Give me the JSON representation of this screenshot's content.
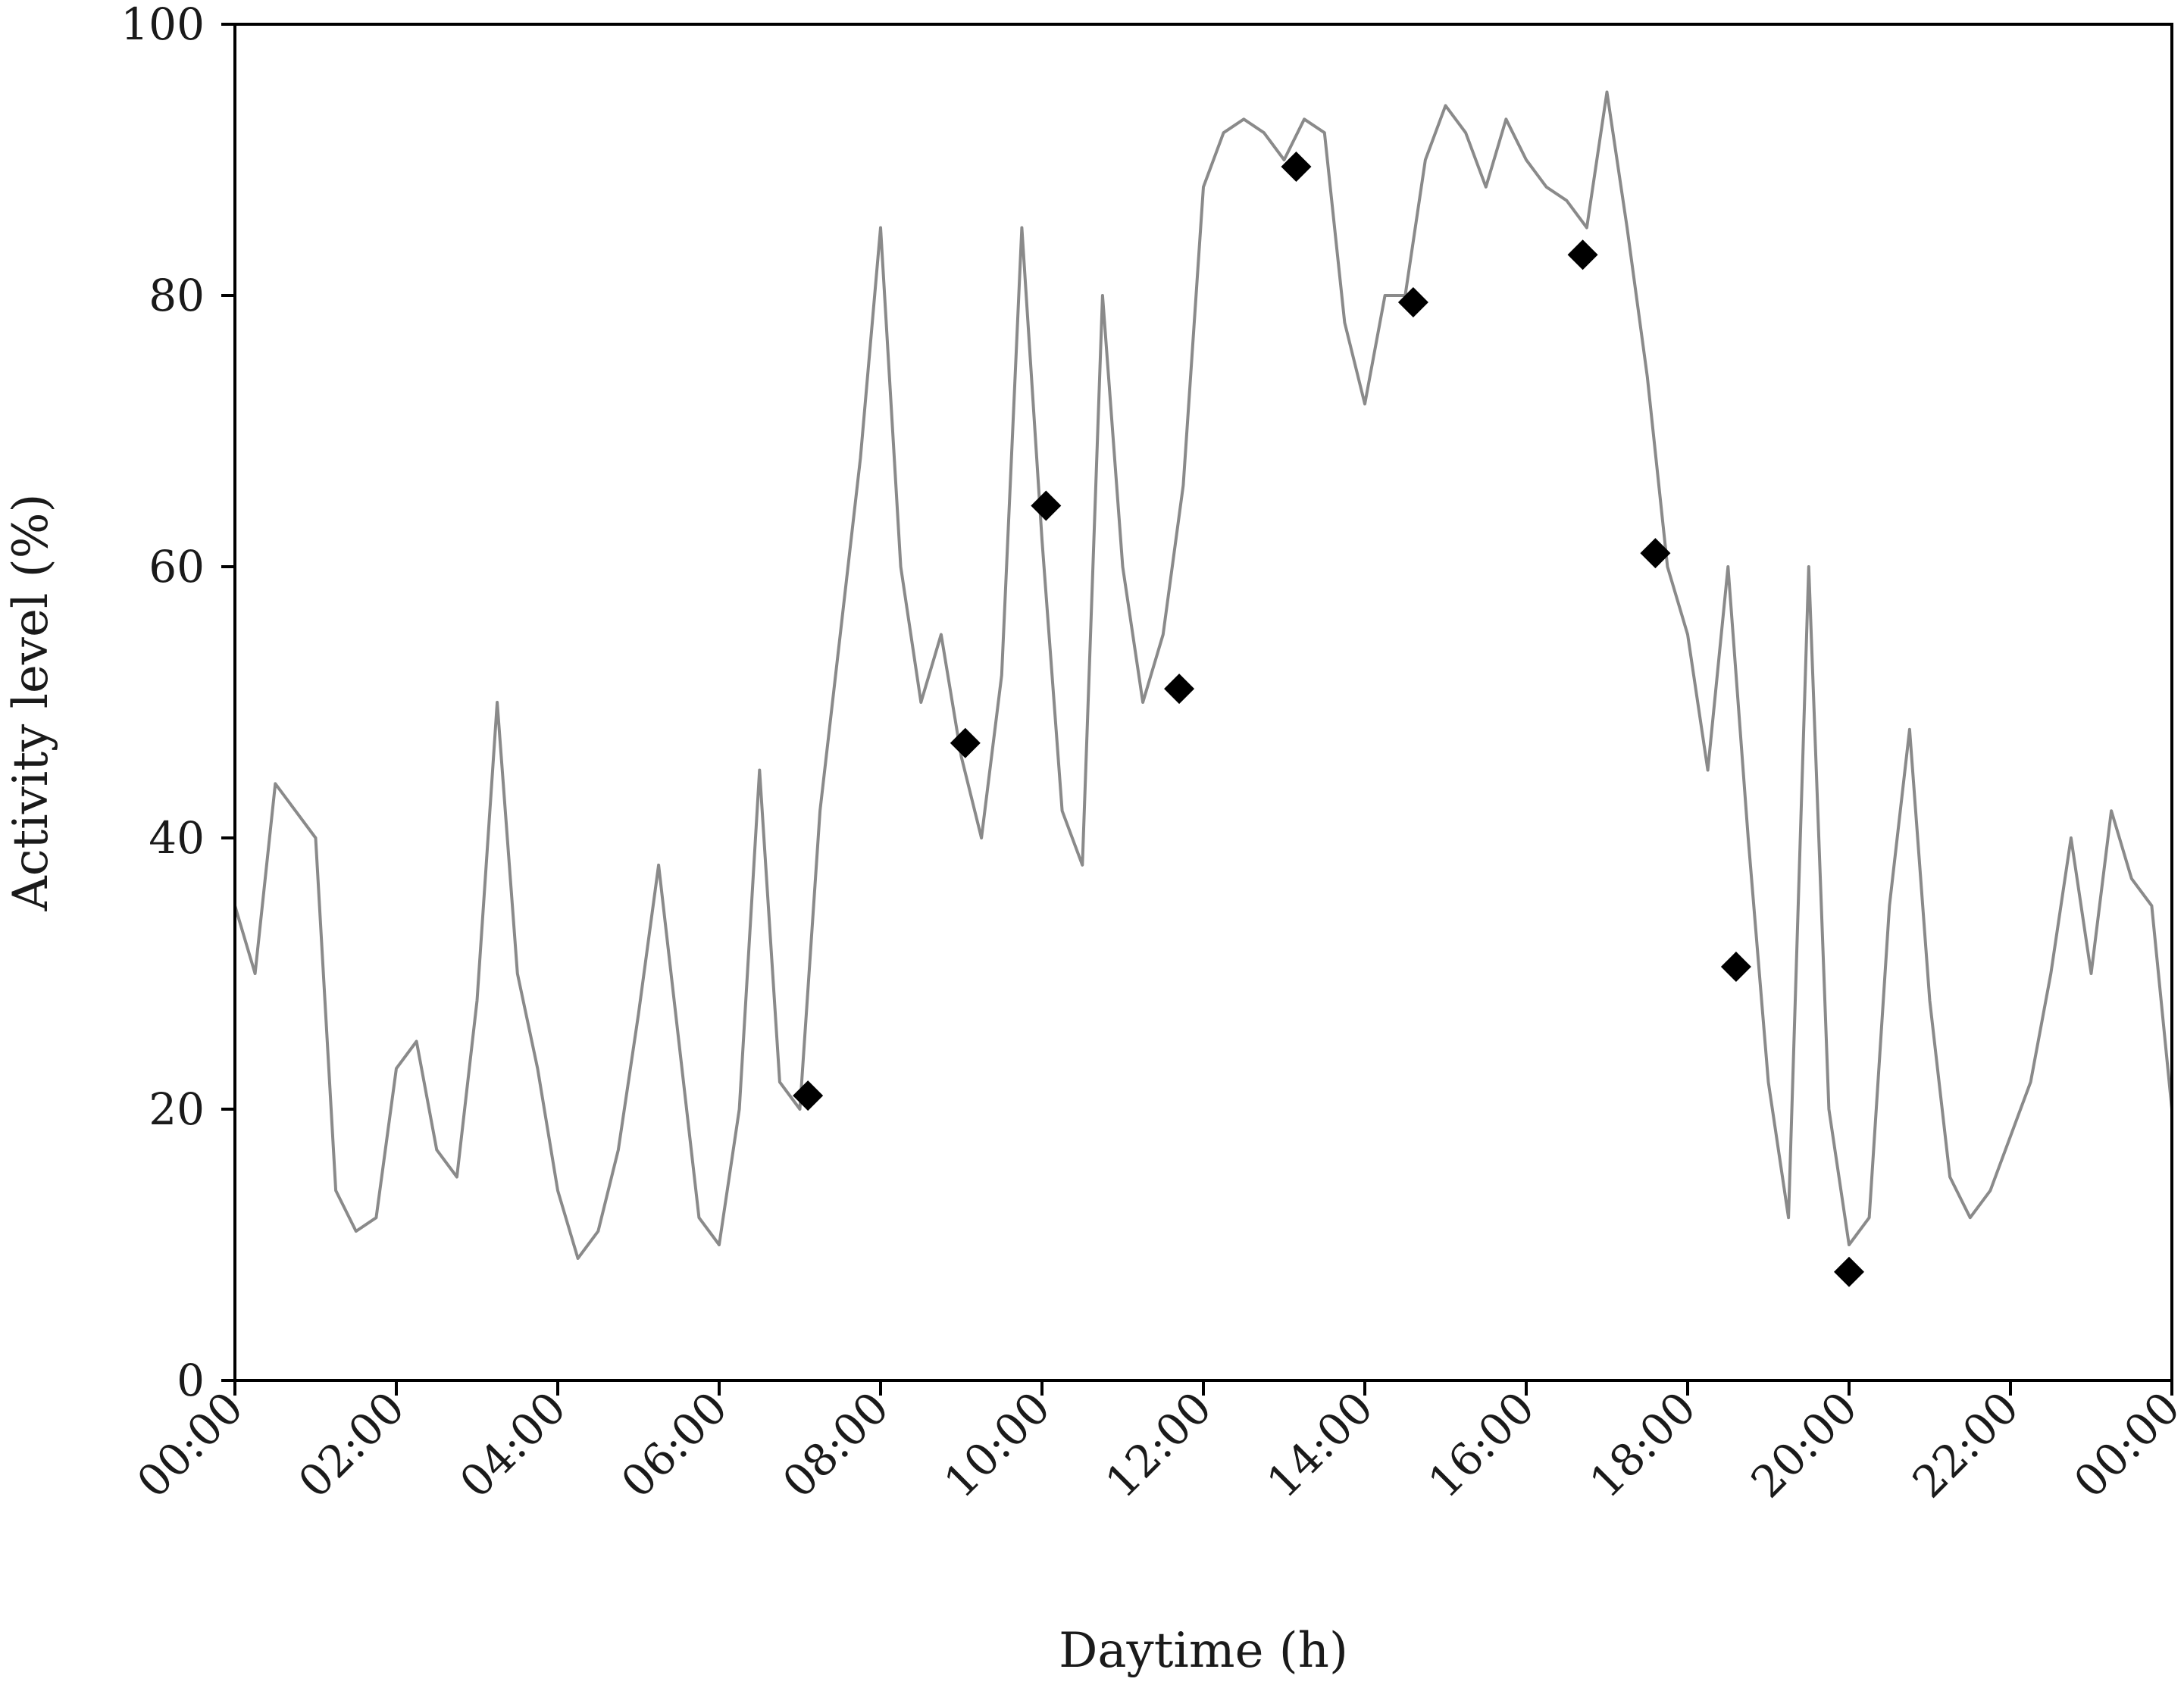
{
  "chart_data": {
    "type": "line",
    "title": "",
    "xlabel": "Daytime (h)",
    "ylabel": "Activity level (%)",
    "xlim": [
      0,
      24
    ],
    "ylim": [
      0,
      100
    ],
    "grid": false,
    "legend": "none",
    "x_ticks": [
      {
        "value": 0,
        "label": "00:00"
      },
      {
        "value": 2,
        "label": "02:00"
      },
      {
        "value": 4,
        "label": "04:00"
      },
      {
        "value": 6,
        "label": "06:00"
      },
      {
        "value": 8,
        "label": "08:00"
      },
      {
        "value": 10,
        "label": "10:00"
      },
      {
        "value": 12,
        "label": "12:00"
      },
      {
        "value": 14,
        "label": "14:00"
      },
      {
        "value": 16,
        "label": "16:00"
      },
      {
        "value": 18,
        "label": "18:00"
      },
      {
        "value": 20,
        "label": "20:00"
      },
      {
        "value": 22,
        "label": "22:00"
      },
      {
        "value": 24,
        "label": "00:00"
      }
    ],
    "y_ticks": [
      {
        "value": 0,
        "label": "0"
      },
      {
        "value": 20,
        "label": "20"
      },
      {
        "value": 40,
        "label": "40"
      },
      {
        "value": 60,
        "label": "60"
      },
      {
        "value": 80,
        "label": "80"
      },
      {
        "value": 100,
        "label": "100"
      }
    ],
    "series": [
      {
        "kind": "line",
        "color": "#8a8a8a",
        "x": [
          0.0,
          0.25,
          0.5,
          0.75,
          1.0,
          1.25,
          1.5,
          1.75,
          2.0,
          2.25,
          2.5,
          2.75,
          3.0,
          3.25,
          3.5,
          3.75,
          4.0,
          4.25,
          4.5,
          4.75,
          5.0,
          5.25,
          5.5,
          5.75,
          6.0,
          6.25,
          6.5,
          6.75,
          7.0,
          7.25,
          7.5,
          7.75,
          8.0,
          8.25,
          8.5,
          8.75,
          9.0,
          9.25,
          9.5,
          9.75,
          10.0,
          10.25,
          10.5,
          10.75,
          11.0,
          11.25,
          11.5,
          11.75,
          12.0,
          12.25,
          12.5,
          12.75,
          13.0,
          13.25,
          13.5,
          13.75,
          14.0,
          14.25,
          14.5,
          14.75,
          15.0,
          15.25,
          15.5,
          15.75,
          16.0,
          16.25,
          16.5,
          16.75,
          17.0,
          17.25,
          17.5,
          17.75,
          18.0,
          18.25,
          18.5,
          18.75,
          19.0,
          19.25,
          19.5,
          19.75,
          20.0,
          20.25,
          20.5,
          20.75,
          21.0,
          21.25,
          21.5,
          21.75,
          22.0,
          22.25,
          22.5,
          22.75,
          23.0,
          23.25,
          23.5,
          23.75,
          24.0
        ],
        "values": [
          35,
          30,
          44,
          42,
          40,
          14,
          11,
          12,
          23,
          25,
          17,
          15,
          28,
          50,
          30,
          23,
          14,
          9,
          11,
          17,
          27,
          38,
          25,
          12,
          10,
          20,
          45,
          22,
          20,
          42,
          55,
          68,
          85,
          60,
          50,
          55,
          46,
          40,
          52,
          85,
          62,
          42,
          38,
          80,
          60,
          50,
          55,
          66,
          88,
          92,
          93,
          92,
          90,
          93,
          92,
          78,
          72,
          80,
          80,
          90,
          94,
          92,
          88,
          93,
          90,
          88,
          87,
          85,
          95,
          85,
          74,
          60,
          55,
          45,
          60,
          40,
          22,
          12,
          60,
          20,
          10,
          12,
          35,
          48,
          28,
          15,
          12,
          14,
          18,
          22,
          30,
          40,
          30,
          42,
          37,
          35,
          20
        ]
      },
      {
        "kind": "markers",
        "marker": "diamond",
        "color": "#000000",
        "x": [
          7.1,
          9.05,
          10.05,
          11.7,
          13.15,
          14.6,
          16.7,
          17.6,
          18.6,
          20.0
        ],
        "values": [
          21,
          47,
          64.5,
          51,
          89.5,
          79.5,
          83,
          61,
          30.5,
          8
        ]
      }
    ]
  }
}
